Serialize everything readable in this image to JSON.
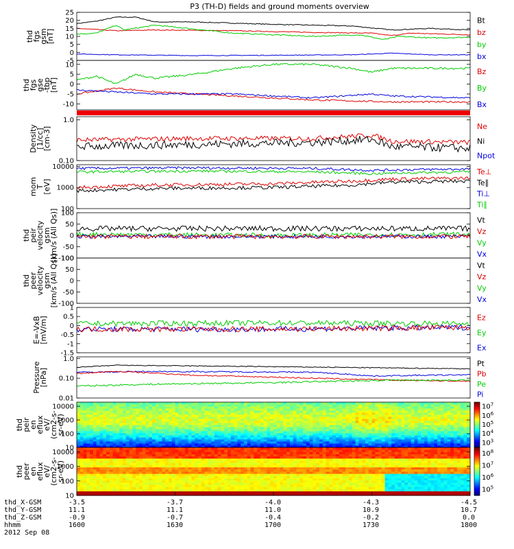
{
  "title": "P3 (TH-D) fields and ground moments overview",
  "chart_data": [
    {
      "type": "line",
      "ylabel": [
        "thd",
        "fgs",
        "gsm",
        "[nT]"
      ],
      "yticks": [
        -5,
        0,
        5,
        10,
        15,
        20,
        25
      ],
      "ylim": [
        -5,
        25
      ],
      "scale": "linear",
      "legend": [
        {
          "label": "Bt",
          "color": "#000000"
        },
        {
          "label": "bz",
          "color": "#dd0000"
        },
        {
          "label": "by",
          "color": "#00cc00"
        },
        {
          "label": "bx",
          "color": "#0000dd"
        }
      ],
      "series": [
        {
          "name": "Bt",
          "color": "#000000",
          "points": [
            [
              0,
              18
            ],
            [
              0.05,
              19.5
            ],
            [
              0.1,
              22
            ],
            [
              0.15,
              22
            ],
            [
              0.2,
              19
            ],
            [
              0.3,
              19
            ],
            [
              0.5,
              17.5
            ],
            [
              0.7,
              16.5
            ],
            [
              0.8,
              14
            ],
            [
              0.9,
              15
            ],
            [
              1,
              14
            ]
          ],
          "noise": 0.25
        },
        {
          "name": "bz",
          "color": "#dd0000",
          "points": [
            [
              0,
              15
            ],
            [
              0.1,
              13.5
            ],
            [
              0.2,
              14
            ],
            [
              0.4,
              13.5
            ],
            [
              0.6,
              12.5
            ],
            [
              0.75,
              12
            ],
            [
              0.8,
              10.5
            ],
            [
              0.85,
              12
            ],
            [
              1,
              11
            ]
          ],
          "noise": 0.25
        },
        {
          "name": "by",
          "color": "#00cc00",
          "points": [
            [
              0,
              11.5
            ],
            [
              0.05,
              12
            ],
            [
              0.1,
              17
            ],
            [
              0.12,
              14
            ],
            [
              0.2,
              17
            ],
            [
              0.4,
              12
            ],
            [
              0.6,
              10
            ],
            [
              0.72,
              11
            ],
            [
              0.78,
              8
            ],
            [
              0.82,
              10
            ],
            [
              0.9,
              9
            ],
            [
              1,
              9.5
            ]
          ],
          "noise": 0.35
        },
        {
          "name": "bx",
          "color": "#0000dd",
          "points": [
            [
              0,
              -1
            ],
            [
              0.1,
              -1.5
            ],
            [
              0.3,
              -2
            ],
            [
              0.5,
              -1.8
            ],
            [
              0.7,
              -1.5
            ],
            [
              0.8,
              -0.5
            ],
            [
              0.9,
              -1.5
            ],
            [
              1,
              -1.5
            ]
          ],
          "noise": 0.2
        }
      ]
    },
    {
      "type": "line",
      "ylabel": [
        "thd",
        "fgs",
        "gse",
        "-tbp",
        "[nT]"
      ],
      "yticks": [
        -10,
        -5,
        0,
        5,
        10
      ],
      "ylim": [
        -13,
        12
      ],
      "scale": "linear",
      "legend": [
        {
          "label": "Bz",
          "color": "#dd0000"
        },
        {
          "label": "By",
          "color": "#00cc00"
        },
        {
          "label": "Bx",
          "color": "#0000dd"
        }
      ],
      "series": [
        {
          "name": "By",
          "color": "#00cc00",
          "points": [
            [
              0,
              2
            ],
            [
              0.05,
              4
            ],
            [
              0.1,
              0
            ],
            [
              0.15,
              5
            ],
            [
              0.2,
              3
            ],
            [
              0.3,
              5
            ],
            [
              0.4,
              8
            ],
            [
              0.5,
              10
            ],
            [
              0.6,
              10
            ],
            [
              0.7,
              8
            ],
            [
              0.75,
              6
            ],
            [
              0.8,
              8
            ],
            [
              0.9,
              8
            ],
            [
              1,
              8
            ]
          ],
          "noise": 0.5
        },
        {
          "name": "Bz",
          "color": "#dd0000",
          "points": [
            [
              0,
              -5
            ],
            [
              0.1,
              -2
            ],
            [
              0.2,
              -4
            ],
            [
              0.4,
              -6
            ],
            [
              0.6,
              -8
            ],
            [
              0.8,
              -9
            ],
            [
              1,
              -9
            ]
          ],
          "noise": 0.4
        },
        {
          "name": "Bx",
          "color": "#0000dd",
          "points": [
            [
              0,
              -3
            ],
            [
              0.1,
              -4
            ],
            [
              0.2,
              -5
            ],
            [
              0.4,
              -5
            ],
            [
              0.6,
              -7
            ],
            [
              0.75,
              -5
            ],
            [
              0.8,
              -6
            ],
            [
              1,
              -7
            ]
          ],
          "noise": 0.4
        }
      ]
    },
    {
      "type": "line",
      "ylabel": [
        "Density",
        "[1/cc]",
        "[cm-3]"
      ],
      "yticks": [
        0.1,
        1.0
      ],
      "ylim": [
        0.1,
        1.2
      ],
      "scale": "log",
      "legend": [
        {
          "label": "Ne",
          "color": "#dd0000"
        },
        {
          "label": "Ni",
          "color": "#000000"
        },
        {
          "label": "Npot",
          "color": "#0000dd"
        }
      ],
      "series": [
        {
          "name": "Ne",
          "color": "#dd0000",
          "points": [
            [
              0,
              0.32
            ],
            [
              0.3,
              0.35
            ],
            [
              0.6,
              0.35
            ],
            [
              0.75,
              0.42
            ],
            [
              0.8,
              0.3
            ],
            [
              1,
              0.28
            ]
          ],
          "noise": 0.06
        },
        {
          "name": "Ni",
          "color": "#000000",
          "points": [
            [
              0,
              0.22
            ],
            [
              0.3,
              0.25
            ],
            [
              0.6,
              0.28
            ],
            [
              0.75,
              0.33
            ],
            [
              0.8,
              0.22
            ],
            [
              1,
              0.2
            ]
          ],
          "noise": 0.1
        }
      ]
    },
    {
      "type": "line",
      "ylabel": [
        "mom",
        "T",
        "[eV]"
      ],
      "yticks": [
        100,
        1000,
        10000
      ],
      "ylim": [
        100,
        12000
      ],
      "scale": "log",
      "legend": [
        {
          "label": "Te⊥",
          "color": "#dd0000"
        },
        {
          "label": "Te∥",
          "color": "#000000"
        },
        {
          "label": "Ti⊥",
          "color": "#0000dd"
        },
        {
          "label": "Ti∥",
          "color": "#00cc00"
        }
      ],
      "series": [
        {
          "name": "Ti⊥",
          "color": "#0000dd",
          "points": [
            [
              0,
              8000
            ],
            [
              0.3,
              8500
            ],
            [
              0.6,
              8000
            ],
            [
              0.75,
              6500
            ],
            [
              0.85,
              7000
            ],
            [
              1,
              7500
            ]
          ],
          "noise": 0.06
        },
        {
          "name": "Ti∥",
          "color": "#00cc00",
          "points": [
            [
              0,
              5500
            ],
            [
              0.3,
              6000
            ],
            [
              0.6,
              5500
            ],
            [
              0.75,
              4500
            ],
            [
              0.85,
              5000
            ],
            [
              1,
              5500
            ]
          ],
          "noise": 0.06
        },
        {
          "name": "Te⊥",
          "color": "#dd0000",
          "points": [
            [
              0,
              1000
            ],
            [
              0.2,
              1300
            ],
            [
              0.5,
              1500
            ],
            [
              0.7,
              2000
            ],
            [
              0.8,
              2500
            ],
            [
              1,
              2800
            ]
          ],
          "noise": 0.08
        },
        {
          "name": "Te∥",
          "color": "#000000",
          "points": [
            [
              0,
              700
            ],
            [
              0.2,
              900
            ],
            [
              0.5,
              1000
            ],
            [
              0.7,
              1300
            ],
            [
              0.8,
              1800
            ],
            [
              1,
              2000
            ]
          ],
          "noise": 0.08
        }
      ]
    },
    {
      "type": "line",
      "ylabel": [
        "thd",
        "peir",
        "velocity",
        "gsm",
        "[km/s (All Qs)]"
      ],
      "yticks": [
        -100,
        -50,
        0,
        50,
        100
      ],
      "ylim": [
        -100,
        100
      ],
      "scale": "linear",
      "legend": [
        {
          "label": "Vt",
          "color": "#000000"
        },
        {
          "label": "Vz",
          "color": "#dd0000"
        },
        {
          "label": "Vy",
          "color": "#00cc00"
        },
        {
          "label": "Vx",
          "color": "#0000dd"
        }
      ],
      "series": [
        {
          "name": "Vt",
          "color": "#000000",
          "points": [
            [
              0,
              30
            ],
            [
              0.5,
              30
            ],
            [
              1,
              30
            ]
          ],
          "noise": 12
        },
        {
          "name": "Vy",
          "color": "#00cc00",
          "points": [
            [
              0,
              5
            ],
            [
              0.5,
              0
            ],
            [
              1,
              5
            ]
          ],
          "noise": 10
        },
        {
          "name": "Vx",
          "color": "#0000dd",
          "points": [
            [
              0,
              -5
            ],
            [
              0.5,
              -5
            ],
            [
              1,
              -5
            ]
          ],
          "noise": 8
        },
        {
          "name": "Vz",
          "color": "#dd0000",
          "points": [
            [
              0,
              -5
            ],
            [
              0.5,
              -5
            ],
            [
              1,
              -5
            ]
          ],
          "noise": 10
        }
      ]
    },
    {
      "type": "line",
      "ylabel": [
        "thd",
        "peer",
        "velocity",
        "gsm",
        "[km/s (All Qs)]"
      ],
      "yticks": [
        -100,
        -50,
        0,
        50,
        100
      ],
      "ylim": [
        -100,
        100
      ],
      "scale": "linear",
      "legend": [
        {
          "label": "Vt",
          "color": "#000000"
        },
        {
          "label": "Vz",
          "color": "#dd0000"
        },
        {
          "label": "Vy",
          "color": "#00cc00"
        },
        {
          "label": "Vx",
          "color": "#0000dd"
        }
      ],
      "series": []
    },
    {
      "type": "line",
      "ylabel": [
        "E=-VxB",
        "[mV/m]"
      ],
      "yticks": [
        -1.5,
        -1.0,
        -0.5,
        0.0,
        0.5,
        1.0
      ],
      "ylim": [
        -1.5,
        1.0
      ],
      "scale": "linear",
      "legend": [
        {
          "label": "Ez",
          "color": "#dd0000"
        },
        {
          "label": "Ey",
          "color": "#00cc00"
        },
        {
          "label": "Ex",
          "color": "#0000dd"
        }
      ],
      "series": [
        {
          "name": "Ey",
          "color": "#00cc00",
          "points": [
            [
              0,
              0.1
            ],
            [
              0.5,
              0.15
            ],
            [
              1,
              0.1
            ]
          ],
          "noise": 0.15
        },
        {
          "name": "Ex",
          "color": "#0000dd",
          "points": [
            [
              0,
              -0.2
            ],
            [
              0.5,
              -0.2
            ],
            [
              1,
              -0.1
            ]
          ],
          "noise": 0.15
        },
        {
          "name": "Ez",
          "color": "#dd0000",
          "points": [
            [
              0,
              -0.2
            ],
            [
              0.5,
              -0.2
            ],
            [
              1,
              -0.1
            ]
          ],
          "noise": 0.15
        }
      ]
    },
    {
      "type": "line",
      "ylabel": [
        "Pressure",
        "[nPa]"
      ],
      "yticks": [
        0.01,
        0.1,
        1.0
      ],
      "ylim": [
        0.01,
        1.2
      ],
      "scale": "log",
      "legend": [
        {
          "label": "Pt",
          "color": "#000000"
        },
        {
          "label": "Pb",
          "color": "#dd0000"
        },
        {
          "label": "Pe",
          "color": "#00cc00"
        },
        {
          "label": "Pi",
          "color": "#0000dd"
        }
      ],
      "series": [
        {
          "name": "Pt",
          "color": "#000000",
          "points": [
            [
              0,
              0.35
            ],
            [
              0.1,
              0.45
            ],
            [
              0.4,
              0.4
            ],
            [
              0.8,
              0.33
            ],
            [
              1,
              0.3
            ]
          ],
          "noise": 0.02
        },
        {
          "name": "Pi",
          "color": "#0000dd",
          "points": [
            [
              0,
              0.2
            ],
            [
              0.2,
              0.22
            ],
            [
              0.6,
              0.2
            ],
            [
              0.75,
              0.13
            ],
            [
              1,
              0.15
            ]
          ],
          "noise": 0.03
        },
        {
          "name": "Pb",
          "color": "#dd0000",
          "points": [
            [
              0,
              0.17
            ],
            [
              0.1,
              0.22
            ],
            [
              0.3,
              0.14
            ],
            [
              0.6,
              0.1
            ],
            [
              0.8,
              0.08
            ],
            [
              1,
              0.07
            ]
          ],
          "noise": 0.03
        },
        {
          "name": "Pe",
          "color": "#00cc00",
          "points": [
            [
              0,
              0.04
            ],
            [
              0.2,
              0.05
            ],
            [
              0.5,
              0.06
            ],
            [
              0.8,
              0.08
            ],
            [
              1,
              0.08
            ]
          ],
          "noise": 0.04
        }
      ]
    },
    {
      "type": "heatmap",
      "ylabel": [
        "thd",
        "peir",
        "en",
        "eflux",
        "eV/",
        "(cm2-s-",
        "sr-eV)"
      ],
      "yticks": [
        10,
        100,
        1000,
        10000
      ],
      "ylim": [
        10,
        20000
      ],
      "scale": "log",
      "colorbar_ticks": [
        3,
        4,
        5,
        6,
        7
      ]
    },
    {
      "type": "heatmap",
      "ylabel": [
        "thd",
        "peer",
        "en",
        "eflux",
        "eV/",
        "(cm2-s-",
        "sr-eV)"
      ],
      "yticks": [
        10,
        100,
        1000,
        10000
      ],
      "ylim": [
        10,
        20000
      ],
      "scale": "log",
      "colorbar_ticks": [
        5,
        6,
        7,
        8
      ]
    }
  ],
  "footer": {
    "rows": [
      {
        "label": "thd_X-GSM",
        "values": [
          "-3.5",
          "-3.7",
          "-4.0",
          "-4.3",
          "-4.5"
        ]
      },
      {
        "label": "thd_Y-GSM",
        "values": [
          "11.1",
          "11.1",
          "11.0",
          "10.9",
          "10.7"
        ]
      },
      {
        "label": "thd_Z-GSM",
        "values": [
          "-0.9",
          "-0.7",
          "-0.4",
          "-0.2",
          "0.0"
        ]
      },
      {
        "label": "hhmm",
        "values": [
          "1600",
          "1630",
          "1700",
          "1730",
          "1800"
        ]
      }
    ],
    "date": "2012 Sep 08"
  }
}
